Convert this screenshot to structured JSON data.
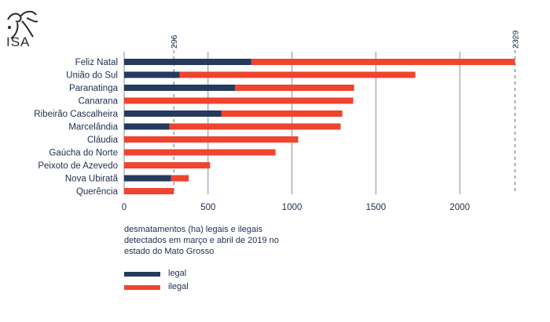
{
  "logo": {
    "text": "ISA"
  },
  "colors": {
    "legal": "#243a5e",
    "ilegal": "#f0442f",
    "grid": "#22304f",
    "text": "#22304f"
  },
  "chart_data": {
    "type": "bar",
    "orientation": "horizontal",
    "stacked": true,
    "categories": [
      "Feliz Natal",
      "União do Sul",
      "Paranatinga",
      "Canarana",
      "Ribeirão Cascalheira",
      "Marcelândia",
      "Cláudia",
      "Gaúcha do Norte",
      "Peixoto de Azevedo",
      "Nova Ubiratã",
      "Querência"
    ],
    "series": [
      {
        "name": "legal",
        "values": [
          758,
          330,
          660,
          0,
          580,
          270,
          0,
          0,
          0,
          280,
          0
        ]
      },
      {
        "name": "ilegal",
        "values": [
          1571,
          1405,
          710,
          1365,
          720,
          1020,
          1037,
          902,
          512,
          105,
          296
        ]
      }
    ],
    "xlim": [
      0,
      2329
    ],
    "xticks": [
      0,
      500,
      1000,
      1500,
      2000
    ],
    "reference_lines": [
      296,
      2329
    ],
    "grid": true,
    "caption": "desmatamentos (ha) legais e ilegais detectados em março e abril de 2019 no estado do Mato Grosso",
    "legend": [
      {
        "label": "legal",
        "color": "#243a5e"
      },
      {
        "label": "ilegal",
        "color": "#f0442f"
      }
    ],
    "legend_position": "bottom-left"
  }
}
